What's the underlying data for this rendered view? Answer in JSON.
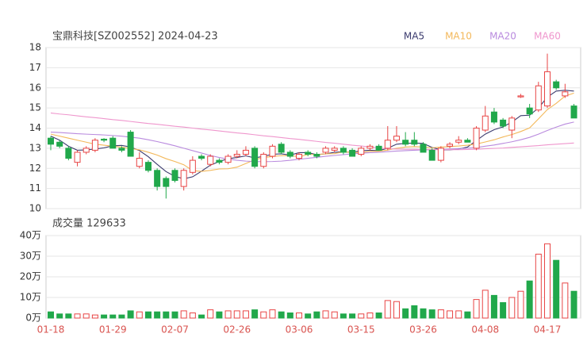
{
  "chart_data": [
    {
      "type": "candlestick",
      "title": "宝鼎科技[SZ002552] 2024-04-23",
      "open": [
        13.5,
        13.3,
        13.0,
        12.3,
        12.8,
        12.9,
        13.45,
        13.5,
        13.0,
        13.8,
        12.1,
        12.3,
        11.9,
        11.5,
        11.9,
        11.1,
        11.8,
        12.6,
        12.2,
        12.4,
        12.3,
        12.6,
        12.7,
        13.0,
        12.1,
        12.6,
        13.2,
        12.8,
        12.5,
        12.8,
        12.7,
        12.8,
        12.9,
        13.0,
        12.9,
        12.7,
        13.0,
        13.1,
        13.0,
        13.4,
        13.4,
        13.4,
        13.2,
        12.9,
        12.4,
        13.1,
        13.3,
        13.4,
        13.0,
        13.9,
        14.8,
        14.4,
        13.9,
        15.55,
        15.0,
        14.9,
        15.1,
        16.3,
        15.6,
        15.1
      ],
      "high": [
        13.6,
        13.4,
        13.1,
        12.9,
        13.1,
        13.5,
        13.5,
        13.6,
        13.1,
        13.9,
        12.8,
        12.4,
        12.0,
        11.6,
        12.0,
        12.0,
        12.6,
        12.7,
        12.7,
        12.5,
        12.7,
        12.9,
        13.1,
        13.1,
        12.8,
        13.2,
        13.3,
        12.9,
        12.8,
        12.9,
        12.8,
        13.1,
        13.1,
        13.1,
        13.0,
        13.1,
        13.2,
        13.2,
        14.1,
        14.1,
        13.8,
        13.8,
        13.3,
        13.0,
        13.1,
        13.3,
        13.6,
        13.5,
        14.1,
        15.1,
        15.0,
        14.5,
        14.6,
        15.7,
        15.2,
        16.3,
        17.7,
        16.4,
        16.2,
        15.2
      ],
      "low": [
        12.9,
        13.0,
        12.4,
        12.1,
        12.7,
        12.8,
        13.3,
        13.0,
        12.8,
        12.6,
        12.0,
        11.8,
        10.9,
        10.5,
        11.3,
        10.9,
        11.7,
        12.4,
        12.1,
        12.2,
        12.2,
        12.5,
        12.6,
        12.0,
        12.0,
        12.5,
        12.7,
        12.5,
        12.4,
        12.6,
        12.5,
        12.7,
        12.8,
        12.7,
        12.6,
        12.6,
        12.9,
        12.9,
        12.9,
        13.3,
        13.1,
        13.1,
        12.8,
        12.4,
        12.3,
        13.0,
        13.2,
        13.3,
        12.9,
        13.8,
        14.2,
        14.0,
        13.5,
        15.5,
        14.5,
        14.8,
        15.0,
        15.9,
        15.5,
        14.5
      ],
      "close": [
        13.2,
        13.1,
        12.5,
        12.8,
        13.0,
        13.4,
        13.4,
        13.0,
        12.9,
        12.6,
        12.5,
        11.9,
        11.1,
        11.1,
        11.4,
        11.9,
        12.4,
        12.5,
        12.6,
        12.3,
        12.6,
        12.7,
        12.9,
        12.1,
        12.7,
        13.1,
        12.8,
        12.6,
        12.7,
        12.7,
        12.6,
        13.0,
        13.0,
        12.8,
        12.6,
        13.0,
        13.1,
        12.9,
        13.4,
        13.6,
        13.2,
        13.2,
        12.8,
        12.4,
        13.0,
        13.2,
        13.4,
        13.3,
        14.0,
        14.6,
        14.3,
        14.1,
        14.5,
        15.6,
        14.7,
        16.1,
        16.8,
        16.0,
        15.8,
        14.5
      ],
      "up_color": "#e84545",
      "down_color": "#21a84b",
      "ylim": [
        10,
        18
      ],
      "yticks": [
        10,
        11,
        12,
        13,
        14,
        15,
        16,
        17,
        18
      ],
      "grid": true,
      "series": [
        {
          "name": "MA5",
          "color": "#3b3b6e",
          "values": [
            13.6,
            13.4,
            13.1,
            12.9,
            12.92,
            12.96,
            13.02,
            13.12,
            13.14,
            13.06,
            12.88,
            12.58,
            12.2,
            11.84,
            11.6,
            11.48,
            11.58,
            11.86,
            12.16,
            12.34,
            12.48,
            12.54,
            12.62,
            12.52,
            12.6,
            12.7,
            12.72,
            12.66,
            12.78,
            12.78,
            12.68,
            12.72,
            12.8,
            12.82,
            12.8,
            12.88,
            12.9,
            12.88,
            13.0,
            13.2,
            13.24,
            13.26,
            13.24,
            13.04,
            12.92,
            12.92,
            12.96,
            13.06,
            13.38,
            13.7,
            13.92,
            14.06,
            14.3,
            14.62,
            14.64,
            15.0,
            15.54,
            15.84,
            15.88,
            15.84
          ]
        },
        {
          "name": "MA10",
          "color": "#f3b85a",
          "values": [
            13.7,
            13.6,
            13.5,
            13.4,
            13.3,
            13.2,
            13.15,
            13.1,
            13.05,
            12.99,
            12.92,
            12.8,
            12.66,
            12.48,
            12.34,
            12.18,
            11.89,
            11.85,
            11.9,
            11.97,
            11.98,
            12.06,
            12.24,
            12.43,
            12.54,
            12.59,
            12.63,
            12.64,
            12.57,
            12.69,
            12.69,
            12.72,
            12.73,
            12.82,
            12.79,
            12.78,
            12.85,
            12.85,
            12.91,
            13.0,
            13.06,
            13.08,
            13.06,
            13.02,
            13.06,
            13.08,
            13.11,
            13.15,
            13.21,
            13.31,
            13.42,
            13.56,
            13.68,
            13.83,
            14.01,
            14.46,
            14.92,
            15.23,
            15.59,
            15.74
          ]
        },
        {
          "name": "MA20",
          "color": "#b98ade",
          "values": [
            13.8,
            13.78,
            13.75,
            13.72,
            13.7,
            13.68,
            13.66,
            13.63,
            13.6,
            13.55,
            13.5,
            13.42,
            13.33,
            13.23,
            13.12,
            13.0,
            12.88,
            12.76,
            12.64,
            12.54,
            12.46,
            12.4,
            12.36,
            12.34,
            12.33,
            12.34,
            12.36,
            12.4,
            12.45,
            12.5,
            12.55,
            12.6,
            12.64,
            12.68,
            12.72,
            12.75,
            12.78,
            12.8,
            12.83,
            12.86,
            12.88,
            12.9,
            12.92,
            12.93,
            12.94,
            12.96,
            12.98,
            13.0,
            13.04,
            13.1,
            13.16,
            13.24,
            13.32,
            13.42,
            13.54,
            13.7,
            13.88,
            14.05,
            14.2,
            14.3
          ]
        },
        {
          "name": "MA60",
          "color": "#ef96cd",
          "values": [
            14.75,
            14.7,
            14.66,
            14.61,
            14.56,
            14.52,
            14.47,
            14.42,
            14.38,
            14.33,
            14.28,
            14.23,
            14.19,
            14.14,
            14.09,
            14.05,
            14.0,
            13.95,
            13.91,
            13.86,
            13.81,
            13.76,
            13.72,
            13.67,
            13.62,
            13.58,
            13.53,
            13.48,
            13.44,
            13.39,
            13.34,
            13.29,
            13.25,
            13.2,
            13.15,
            13.11,
            13.06,
            13.01,
            12.97,
            12.96,
            12.95,
            12.95,
            12.94,
            12.94,
            12.93,
            12.93,
            12.93,
            12.94,
            12.95,
            12.97,
            12.99,
            13.01,
            13.04,
            13.07,
            13.1,
            13.13,
            13.17,
            13.2,
            13.23,
            13.26
          ]
        }
      ]
    },
    {
      "type": "volume",
      "title": "成交量 129633",
      "categories": [
        "01-18",
        null,
        null,
        null,
        null,
        null,
        null,
        "01-29",
        null,
        null,
        null,
        null,
        null,
        null,
        "02-07",
        null,
        null,
        null,
        null,
        null,
        null,
        "02-26",
        null,
        null,
        null,
        null,
        null,
        null,
        "03-06",
        null,
        null,
        null,
        null,
        null,
        null,
        "03-15",
        null,
        null,
        null,
        null,
        null,
        null,
        "03-26",
        null,
        null,
        null,
        null,
        null,
        null,
        "04-08",
        null,
        null,
        null,
        null,
        null,
        null,
        "04-17",
        null,
        null,
        null
      ],
      "values": [
        3,
        2,
        2,
        2,
        2,
        1.5,
        1.5,
        1.5,
        1.5,
        3.5,
        3,
        3,
        3,
        3,
        3,
        3.5,
        2.5,
        1.5,
        4,
        3,
        3.5,
        3.5,
        3.5,
        4,
        3,
        4,
        3,
        2.5,
        2.5,
        2,
        3,
        3.5,
        3,
        2,
        2,
        2,
        2.5,
        2.5,
        8.5,
        8,
        4.5,
        6,
        4.5,
        4,
        4,
        3.5,
        3.5,
        3,
        9,
        13.5,
        11,
        7.5,
        10,
        13,
        18,
        31,
        36,
        28,
        17,
        13
      ],
      "ylim": [
        0,
        40
      ],
      "yticks": [
        {
          "value": 0,
          "label": "0万"
        },
        {
          "value": 10,
          "label": "10万"
        },
        {
          "value": 20,
          "label": "20万"
        },
        {
          "value": 30,
          "label": "30万"
        },
        {
          "value": 40,
          "label": "40万"
        }
      ],
      "grid": true
    }
  ]
}
